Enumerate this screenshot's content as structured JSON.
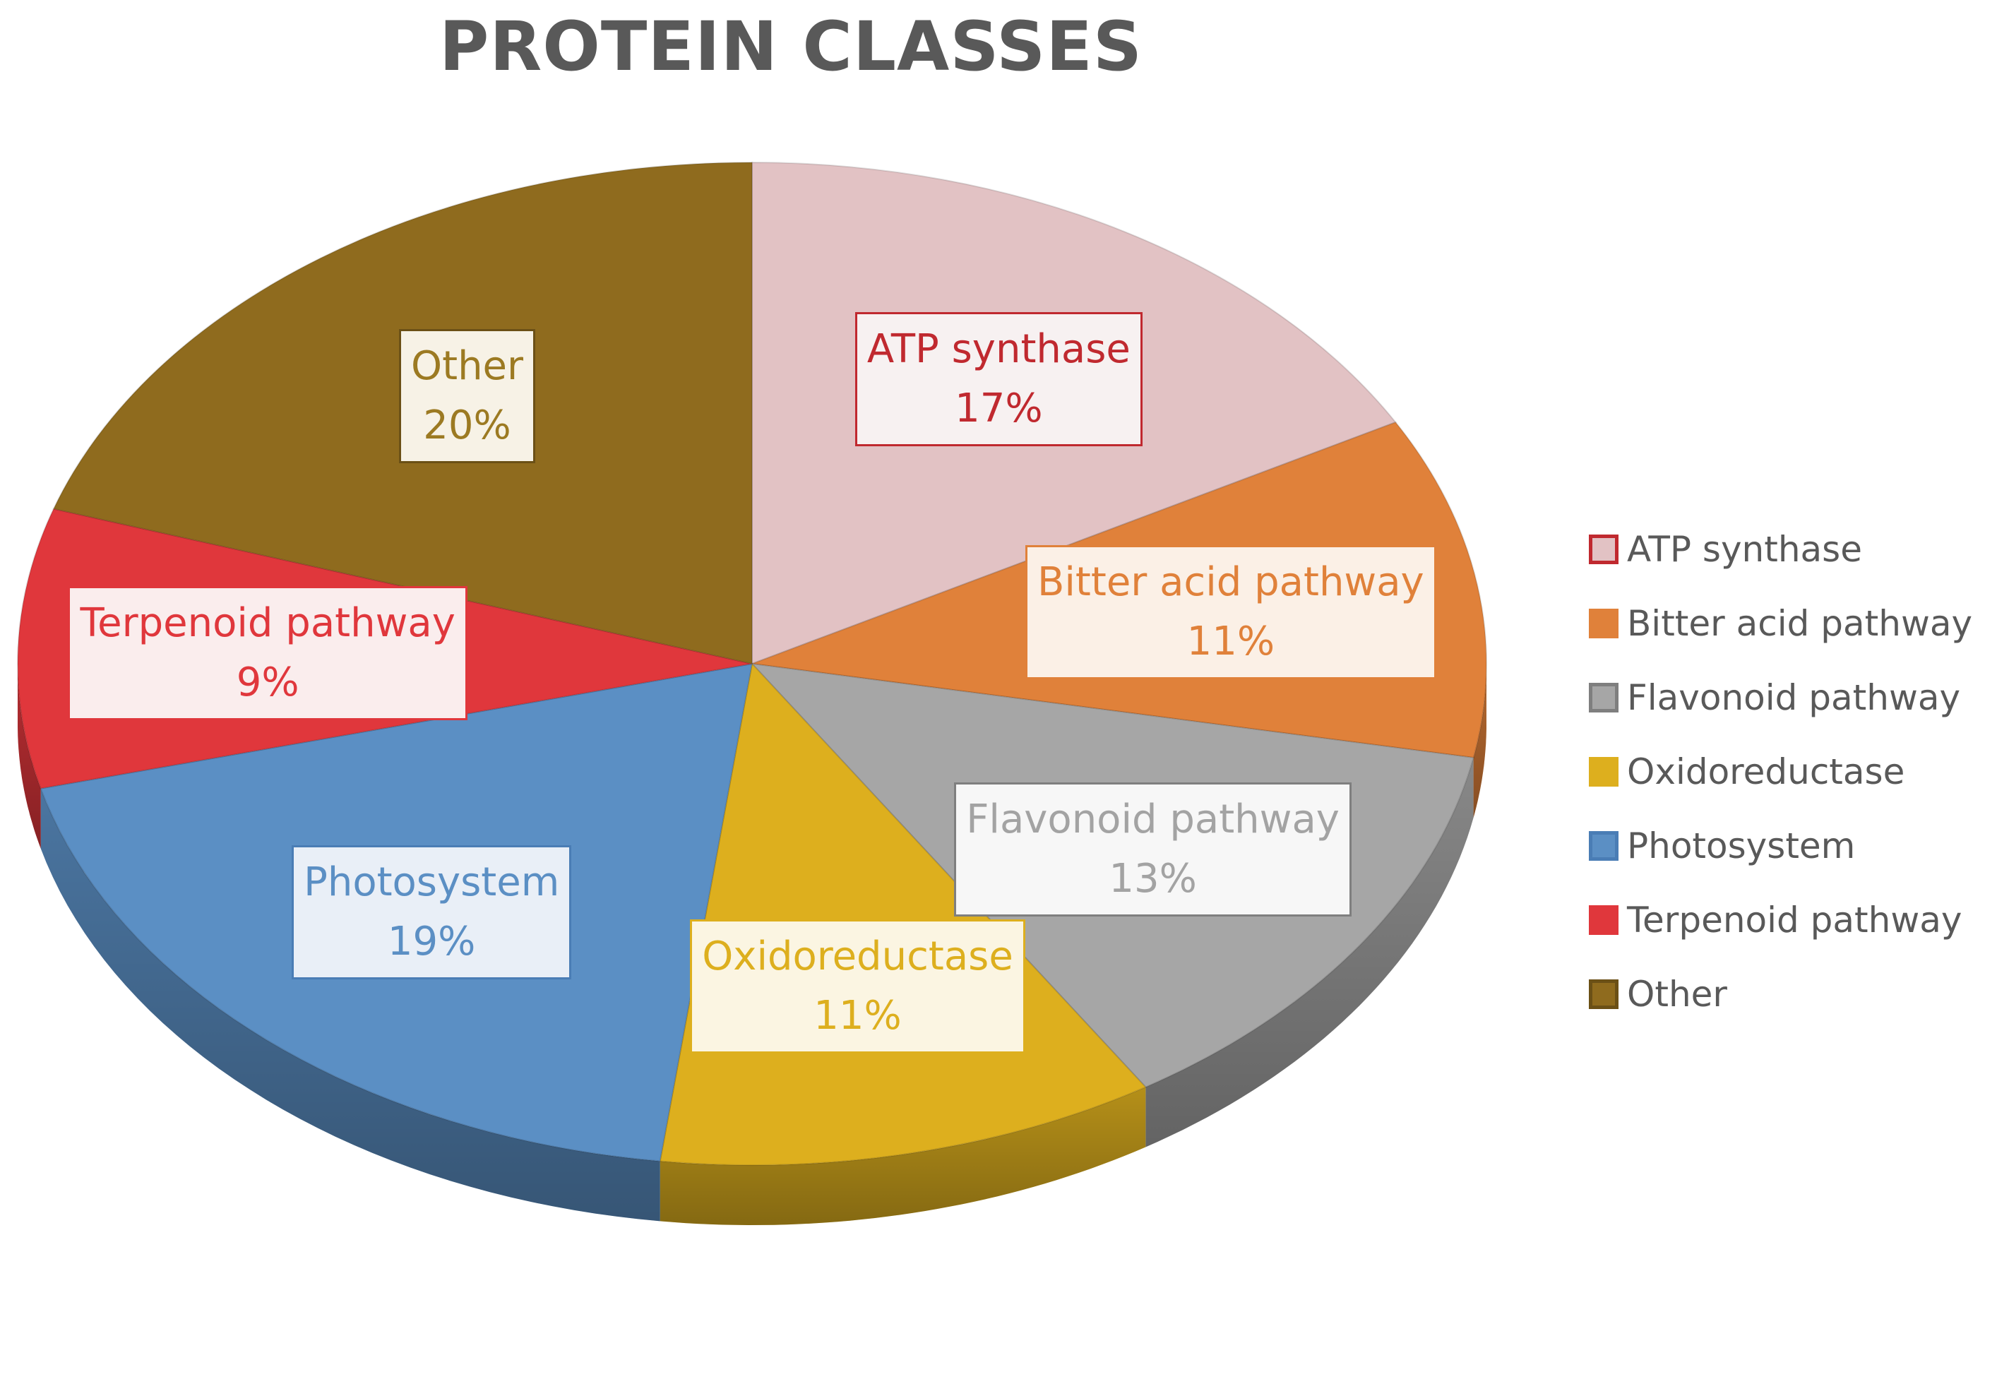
{
  "chart_data": {
    "type": "pie",
    "title": "PROTEIN CLASSES",
    "slices": [
      {
        "label": "ATP synthase",
        "value": 17,
        "display": "17%",
        "color": "#E2C2C4",
        "edge": "#C0292F",
        "text_color": "#C0292F",
        "box_bg": "#F7F1F1"
      },
      {
        "label": "Bitter acid pathway",
        "value": 11,
        "display": "11%",
        "color": "#E0813A",
        "edge": "#E0813A",
        "text_color": "#E0813A",
        "box_bg": "#FBF0E6"
      },
      {
        "label": "Flavonoid pathway",
        "value": 13,
        "display": "13%",
        "color": "#A6A6A6",
        "edge": "#7F7F7F",
        "text_color": "#A3A3A3",
        "box_bg": "#F7F7F7"
      },
      {
        "label": "Oxidoreductase",
        "value": 11,
        "display": "11%",
        "color": "#DDAF1E",
        "edge": "#DDAF1E",
        "text_color": "#DDAF1E",
        "box_bg": "#FBF5E2"
      },
      {
        "label": "Photosystem",
        "value": 19,
        "display": "19%",
        "color": "#5B8FC4",
        "edge": "#4A7DB5",
        "text_color": "#5B8FC4",
        "box_bg": "#E9EFF7"
      },
      {
        "label": "Terpenoid pathway",
        "value": 9,
        "display": "9%",
        "color": "#E0373C",
        "edge": "#E0373C",
        "text_color": "#E0373C",
        "box_bg": "#FAEDED"
      },
      {
        "label": "Other",
        "value": 20,
        "display": "20%",
        "color": "#8F6B1E",
        "edge": "#6B5016",
        "text_color": "#9C7A22",
        "box_bg": "#F7F2E6"
      }
    ],
    "legend": {
      "position": "right"
    }
  }
}
